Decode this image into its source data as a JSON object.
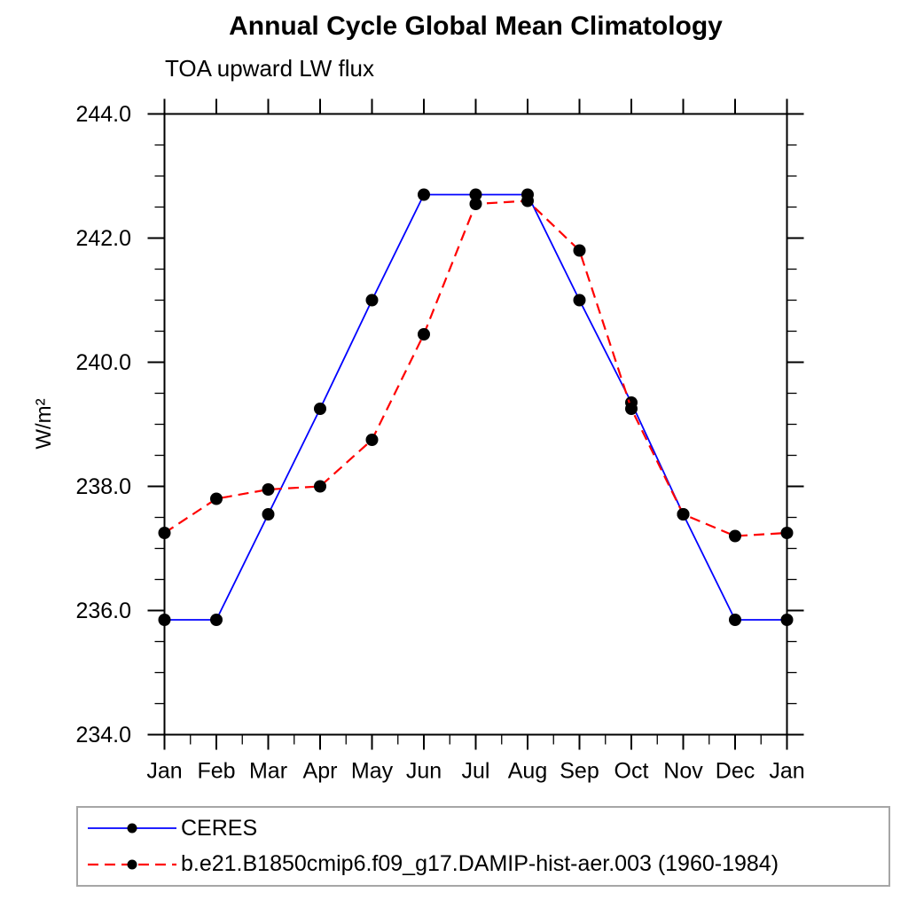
{
  "chart_data": {
    "type": "line",
    "title": "Annual Cycle Global Mean Climatology",
    "subtitle": "TOA upward LW flux",
    "ylabel": "W/m²",
    "xlabel": "",
    "categories": [
      "Jan",
      "Feb",
      "Mar",
      "Apr",
      "May",
      "Jun",
      "Jul",
      "Aug",
      "Sep",
      "Oct",
      "Nov",
      "Dec",
      "Jan"
    ],
    "ylim": [
      234.0,
      244.0
    ],
    "ytick_labels": [
      "234.0",
      "236.0",
      "238.0",
      "240.0",
      "242.0",
      "244.0"
    ],
    "ytick_minor_step": 0.5,
    "xtick_minor": "half-month (bottom axis only)",
    "grid": false,
    "legend_position": "bottom",
    "axis_color": "#000000",
    "series": [
      {
        "name": "CERES",
        "color": "#0000ff",
        "line_style": "solid",
        "marker": "filled-circle",
        "marker_color": "#000000",
        "values": [
          235.85,
          235.85,
          237.55,
          239.25,
          241.0,
          242.7,
          242.7,
          242.7,
          241.0,
          239.35,
          237.55,
          235.85,
          235.85
        ]
      },
      {
        "name": "b.e21.B1850cmip6.f09_g17.DAMIP-hist-aer.003 (1960-1984)",
        "color": "#ff0000",
        "line_style": "dashed",
        "marker": "filled-circle",
        "marker_color": "#000000",
        "values": [
          237.25,
          237.8,
          237.95,
          238.0,
          238.75,
          240.45,
          242.55,
          242.6,
          241.8,
          239.25,
          237.55,
          237.2,
          237.25
        ]
      }
    ]
  },
  "legend": {
    "border_color": "#a6a6a6"
  }
}
